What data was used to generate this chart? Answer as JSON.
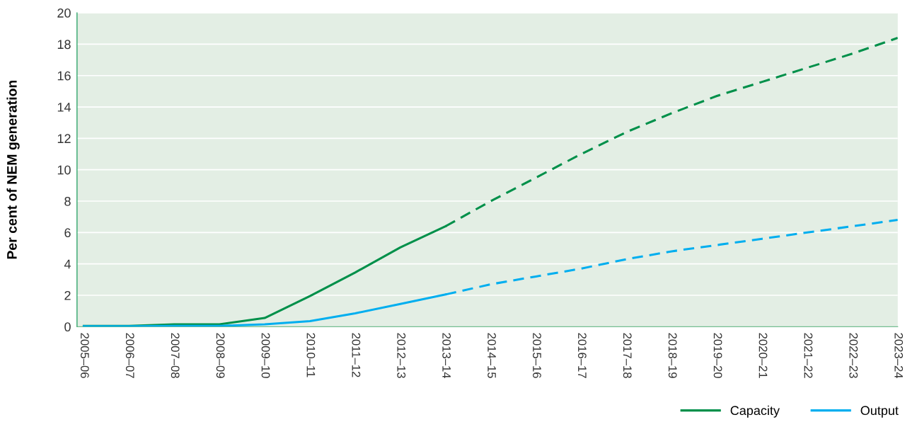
{
  "chart_data": {
    "type": "line",
    "ylabel": "Per cent of NEM generation",
    "categories": [
      "2005–06",
      "2006–07",
      "2007–08",
      "2008–09",
      "2009–10",
      "2010–11",
      "2011–12",
      "2012–13",
      "2013–14",
      "2014–15",
      "2015–16",
      "2016–17",
      "2017–18",
      "2018–19",
      "2019–20",
      "2020–21",
      "2021–22",
      "2022–23",
      "2023–24"
    ],
    "series": [
      {
        "name": "Capacity",
        "color": "#00904a",
        "line_style": "solid",
        "values": [
          0.05,
          0.05,
          0.15,
          0.15,
          0.55,
          1.95,
          3.45,
          5.05,
          6.4,
          null,
          null,
          null,
          null,
          null,
          null,
          null,
          null,
          null,
          null
        ]
      },
      {
        "name": "Output",
        "color": "#00aeef",
        "line_style": "solid",
        "values": [
          0.02,
          0.02,
          0.05,
          0.05,
          0.15,
          0.35,
          0.85,
          1.45,
          2.05,
          null,
          null,
          null,
          null,
          null,
          null,
          null,
          null,
          null,
          null
        ]
      },
      {
        "color": "#00904a",
        "line_style": "dashed",
        "values": [
          null,
          null,
          null,
          null,
          null,
          null,
          null,
          null,
          6.4,
          8.0,
          9.5,
          11.0,
          12.4,
          13.6,
          14.7,
          15.6,
          16.5,
          17.4,
          18.4
        ]
      },
      {
        "color": "#00aeef",
        "line_style": "dashed",
        "values": [
          null,
          null,
          null,
          null,
          null,
          null,
          null,
          null,
          2.05,
          2.7,
          3.2,
          3.7,
          4.3,
          4.8,
          5.2,
          5.6,
          6.0,
          6.4,
          6.8
        ]
      }
    ],
    "ylim": [
      0,
      20
    ],
    "yticks": [
      0,
      2,
      4,
      6,
      8,
      10,
      12,
      14,
      16,
      18,
      20
    ],
    "grid": "y",
    "legend": "bottom right",
    "marker": "none"
  }
}
